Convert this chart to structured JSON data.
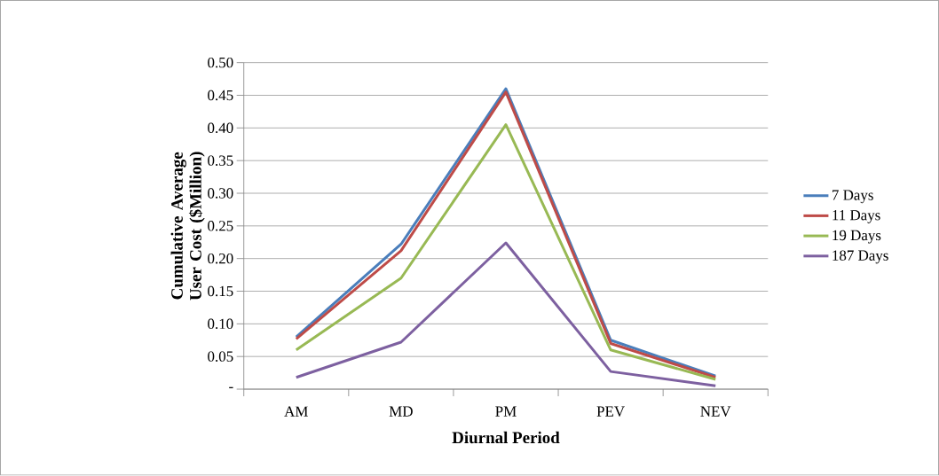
{
  "chart_data": {
    "type": "line",
    "xlabel": "Diurnal Period",
    "ylabel": "Cumulative Average User Cost ($Million)",
    "categories": [
      "AM",
      "MD",
      "PM",
      "PEV",
      "NEV"
    ],
    "series": [
      {
        "name": "7 Days",
        "color": "#4a7ebb",
        "values": [
          0.08,
          0.222,
          0.46,
          0.075,
          0.02
        ]
      },
      {
        "name": "11 Days",
        "color": "#be4b48",
        "values": [
          0.077,
          0.212,
          0.455,
          0.07,
          0.018
        ]
      },
      {
        "name": "19 Days",
        "color": "#98b954",
        "values": [
          0.06,
          0.17,
          0.405,
          0.06,
          0.015
        ]
      },
      {
        "name": "187 Days",
        "color": "#7d60a0",
        "values": [
          0.018,
          0.072,
          0.224,
          0.027,
          0.005
        ]
      }
    ],
    "ylim": [
      0,
      0.5
    ],
    "yticks": [
      {
        "value": 0,
        "label": "-"
      },
      {
        "value": 0.05,
        "label": "0.05"
      },
      {
        "value": 0.1,
        "label": "0.10"
      },
      {
        "value": 0.15,
        "label": "0.15"
      },
      {
        "value": 0.2,
        "label": "0.20"
      },
      {
        "value": 0.25,
        "label": "0.25"
      },
      {
        "value": 0.3,
        "label": "0.30"
      },
      {
        "value": 0.35,
        "label": "0.35"
      },
      {
        "value": 0.4,
        "label": "0.40"
      },
      {
        "value": 0.45,
        "label": "0.45"
      },
      {
        "value": 0.5,
        "label": "0.50"
      }
    ],
    "grid": "y",
    "legend": "right",
    "marker": "none",
    "line_style": "solid"
  }
}
